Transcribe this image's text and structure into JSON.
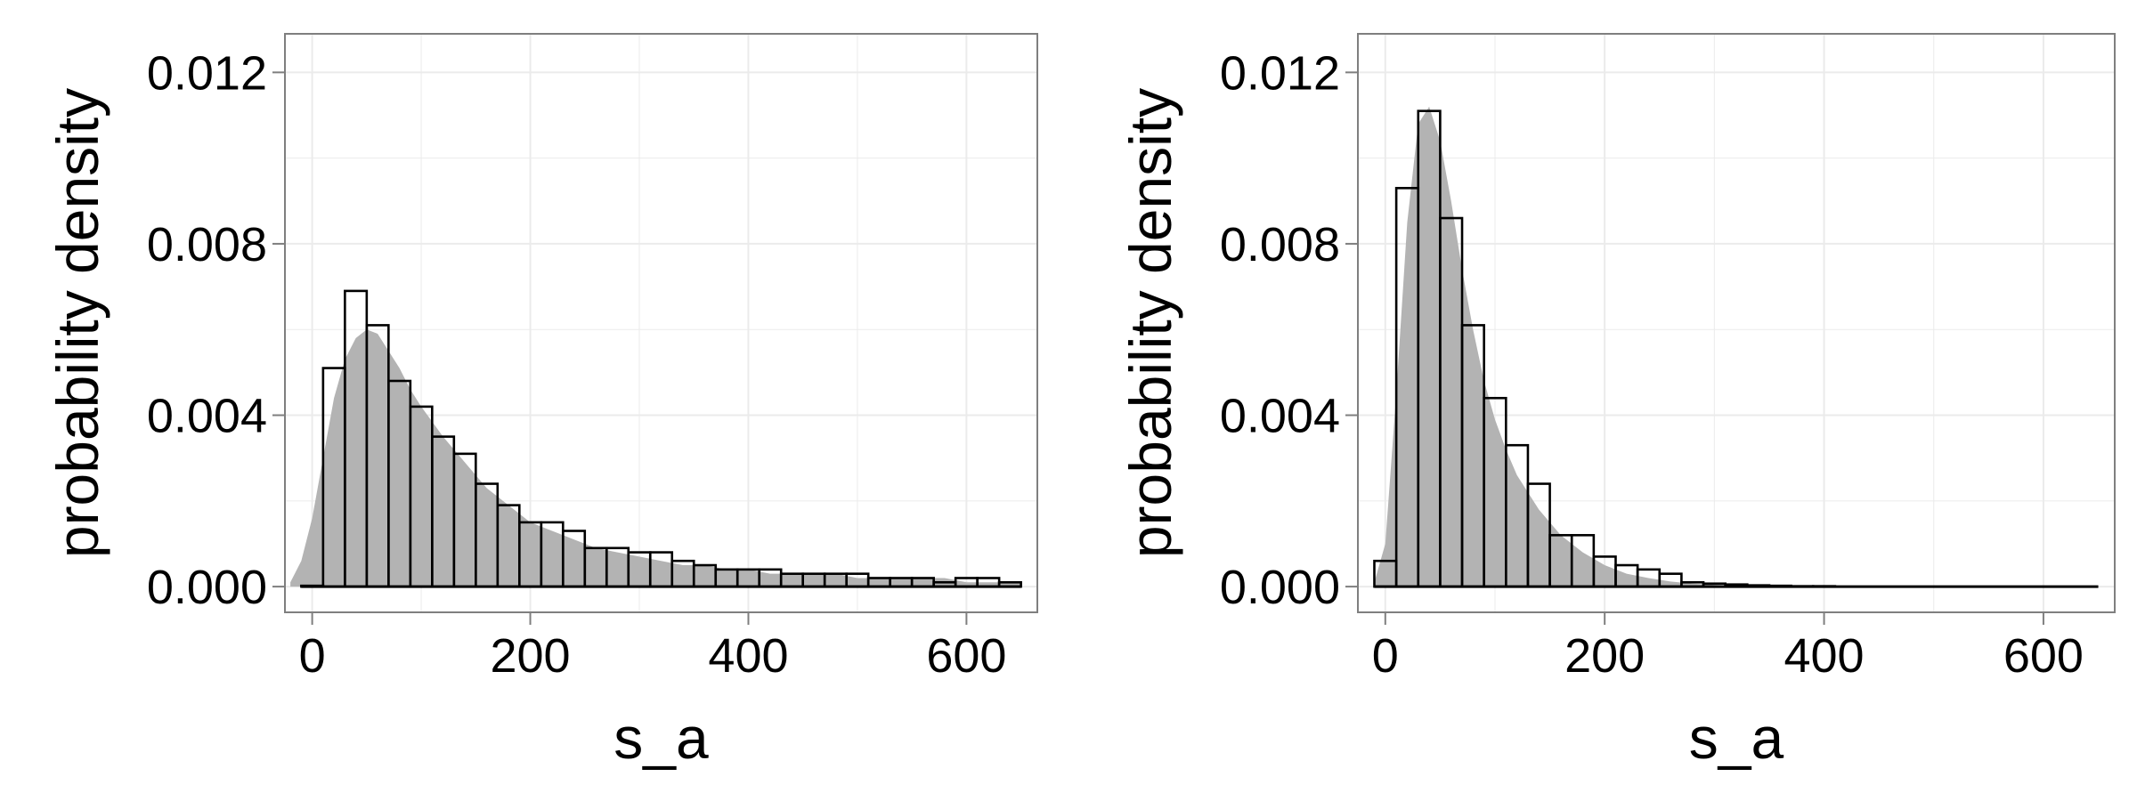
{
  "colors": {
    "background": "#ffffff",
    "panel_border": "#7f7f7f",
    "grid": "#ebebeb",
    "density_fill": "#b3b3b3",
    "bar_outline": "#000000",
    "text": "#000000"
  },
  "chart_data": [
    {
      "type": "histogram",
      "title": "",
      "xlabel": "s_a",
      "ylabel": "probability density",
      "xlim": [
        -25,
        665
      ],
      "ylim": [
        -0.0006,
        0.0129
      ],
      "xticks": [
        0,
        200,
        400,
        600
      ],
      "xtick_labels": [
        "0",
        "200",
        "400",
        "600"
      ],
      "yticks": [
        0,
        0.004,
        0.008,
        0.012
      ],
      "ytick_labels": [
        "0.000",
        "0.004",
        "0.008",
        "0.012"
      ],
      "grid": true,
      "bin_width": 20,
      "bin_starts": [
        -10,
        10,
        30,
        50,
        70,
        90,
        110,
        130,
        150,
        170,
        190,
        210,
        230,
        250,
        270,
        290,
        310,
        330,
        350,
        370,
        390,
        410,
        430,
        450,
        470,
        490,
        510,
        530,
        550,
        570,
        590,
        610,
        630
      ],
      "histogram_values": [
        2e-05,
        0.0051,
        0.0069,
        0.0061,
        0.0048,
        0.0042,
        0.0035,
        0.0031,
        0.0024,
        0.0019,
        0.0015,
        0.0015,
        0.0013,
        0.0009,
        0.0009,
        0.0008,
        0.0008,
        0.0006,
        0.0005,
        0.0004,
        0.0004,
        0.0004,
        0.0003,
        0.0003,
        0.0003,
        0.0003,
        0.0002,
        0.0002,
        0.0002,
        0.0001,
        0.0002,
        0.0002,
        0.0001
      ],
      "density_curve": {
        "x": [
          -20,
          -10,
          0,
          10,
          20,
          30,
          40,
          50,
          60,
          70,
          80,
          90,
          100,
          120,
          140,
          160,
          180,
          200,
          220,
          240,
          260,
          280,
          300,
          320,
          340,
          360,
          380,
          400,
          420,
          440,
          460,
          480,
          500,
          520,
          540,
          560,
          580,
          600,
          620,
          640,
          650
        ],
        "y": [
          0.0001,
          0.0006,
          0.0016,
          0.003,
          0.0044,
          0.0053,
          0.0058,
          0.006,
          0.0059,
          0.0055,
          0.0051,
          0.0046,
          0.0042,
          0.0035,
          0.0029,
          0.0023,
          0.0019,
          0.0015,
          0.0013,
          0.0011,
          0.0009,
          0.0008,
          0.0007,
          0.0006,
          0.0005,
          0.0005,
          0.0004,
          0.0004,
          0.0003,
          0.0003,
          0.0003,
          0.0003,
          0.0002,
          0.0002,
          0.0002,
          0.0002,
          0.0002,
          0.0001,
          0.0001,
          0.0001,
          0.0001
        ]
      }
    },
    {
      "type": "histogram",
      "title": "",
      "xlabel": "s_a",
      "ylabel": "probability density",
      "xlim": [
        -25,
        665
      ],
      "ylim": [
        -0.0006,
        0.0129
      ],
      "xticks": [
        0,
        200,
        400,
        600
      ],
      "xtick_labels": [
        "0",
        "200",
        "400",
        "600"
      ],
      "yticks": [
        0,
        0.004,
        0.008,
        0.012
      ],
      "ytick_labels": [
        "0.000",
        "0.004",
        "0.008",
        "0.012"
      ],
      "grid": true,
      "bin_width": 20,
      "bin_starts": [
        -10,
        10,
        30,
        50,
        70,
        90,
        110,
        130,
        150,
        170,
        190,
        210,
        230,
        250,
        270,
        290,
        310,
        330,
        350,
        370,
        390,
        410,
        430,
        450,
        470,
        490,
        510,
        530,
        550,
        570,
        590,
        610,
        630
      ],
      "histogram_values": [
        0.0006,
        0.0093,
        0.0111,
        0.0086,
        0.0061,
        0.0044,
        0.0033,
        0.0024,
        0.0012,
        0.0012,
        0.0007,
        0.0005,
        0.0004,
        0.0003,
        0.0001,
        7e-05,
        5e-05,
        3e-05,
        2e-05,
        1e-05,
        1e-05,
        0,
        0,
        0,
        0,
        0,
        0,
        0,
        0,
        0,
        0,
        0,
        0
      ],
      "density_curve": {
        "x": [
          -10,
          0,
          10,
          20,
          30,
          40,
          50,
          60,
          70,
          80,
          90,
          100,
          110,
          120,
          140,
          160,
          180,
          200,
          220,
          240,
          260,
          280,
          300,
          320,
          340
        ],
        "y": [
          0.0001,
          0.001,
          0.0045,
          0.0085,
          0.0108,
          0.0112,
          0.0104,
          0.009,
          0.0074,
          0.006,
          0.0048,
          0.0039,
          0.0032,
          0.0026,
          0.0018,
          0.0012,
          0.0008,
          0.0005,
          0.0003,
          0.0002,
          0.00012,
          7e-05,
          4e-05,
          2e-05,
          0
        ]
      }
    }
  ]
}
